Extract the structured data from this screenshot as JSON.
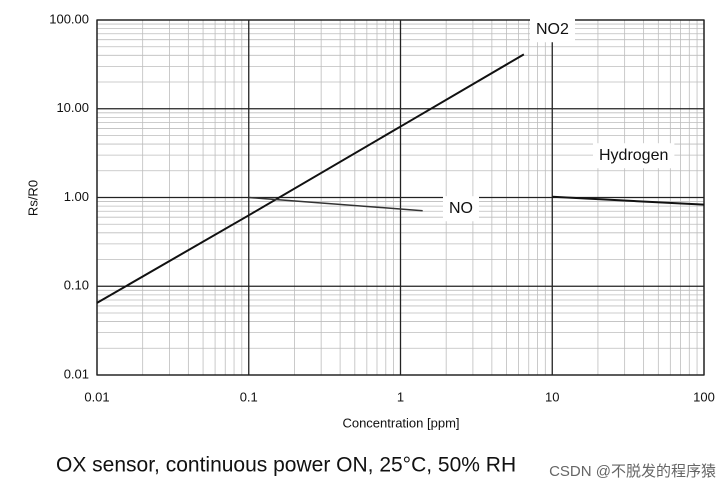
{
  "chart_data": {
    "type": "line",
    "log_x": true,
    "log_y": true,
    "grid": true,
    "minor_grid": true,
    "xlabel": "Concentration [ppm]",
    "ylabel": "Rs/R0",
    "caption": "OX sensor, continuous power ON, 25°C, 50% RH",
    "watermark": "CSDN @不脱发的程序猿",
    "xlim": [
      0.01,
      100
    ],
    "xticks": [
      0.01,
      0.1,
      1,
      10,
      100
    ],
    "ylim": [
      0.01,
      100
    ],
    "yticks": [
      {
        "value": 0.01,
        "label": "0.01"
      },
      {
        "value": 0.1,
        "label": "0.10"
      },
      {
        "value": 1,
        "label": "1.00"
      },
      {
        "value": 10,
        "label": "10.00"
      },
      {
        "value": 100,
        "label": "100.00"
      }
    ],
    "series": [
      {
        "name": "NO2",
        "color": "#111111",
        "x": [
          0.01,
          0.1,
          1,
          6.5
        ],
        "values": [
          0.065,
          0.63,
          6.3,
          41
        ]
      },
      {
        "name": "NO",
        "color": "#333333",
        "x": [
          0.1,
          1.4
        ],
        "values": [
          1.0,
          0.71
        ]
      },
      {
        "name": "Hydrogen",
        "color": "#111111",
        "x": [
          10,
          100
        ],
        "values": [
          1.02,
          0.83
        ]
      }
    ]
  }
}
